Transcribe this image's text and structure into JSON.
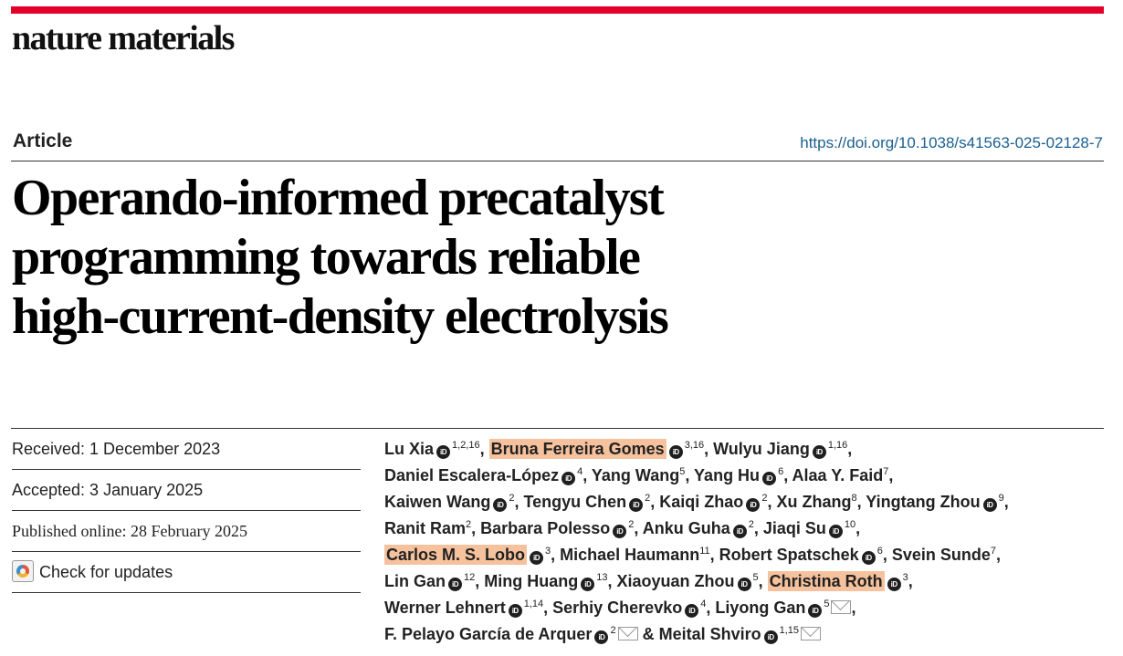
{
  "journal": "nature materials",
  "article_type": "Article",
  "doi": "https://doi.org/10.1038/s41563-025-02128-7",
  "title_lines": [
    "Operando-informed precatalyst",
    "programming towards reliable",
    "high-current-density electrolysis"
  ],
  "dates": {
    "received": "Received: 1 December 2023",
    "accepted": "Accepted: 3 January 2025",
    "published": "Published online: 28 February 2025",
    "check_updates": "Check for updates"
  },
  "orcid_label": "iD",
  "authors": [
    {
      "name": "Lu Xia",
      "orcid": true,
      "aff": "1,2,16",
      "highlight": false
    },
    {
      "name": "Bruna Ferreira Gomes",
      "orcid": true,
      "aff": "3,16",
      "highlight": true
    },
    {
      "name": "Wulyu Jiang",
      "orcid": true,
      "aff": "1,16",
      "highlight": false
    },
    {
      "name": "Daniel Escalera-López",
      "orcid": true,
      "aff": "4",
      "highlight": false
    },
    {
      "name": "Yang Wang",
      "orcid": false,
      "aff": "5",
      "highlight": false
    },
    {
      "name": "Yang Hu",
      "orcid": true,
      "aff": "6",
      "highlight": false
    },
    {
      "name": "Alaa Y. Faid",
      "orcid": false,
      "aff": "7",
      "highlight": false
    },
    {
      "name": "Kaiwen Wang",
      "orcid": true,
      "aff": "2",
      "highlight": false
    },
    {
      "name": "Tengyu Chen",
      "orcid": true,
      "aff": "2",
      "highlight": false
    },
    {
      "name": "Kaiqi Zhao",
      "orcid": true,
      "aff": "2",
      "highlight": false
    },
    {
      "name": "Xu Zhang",
      "orcid": false,
      "aff": "8",
      "highlight": false
    },
    {
      "name": "Yingtang Zhou",
      "orcid": true,
      "aff": "9",
      "highlight": false
    },
    {
      "name": "Ranit Ram",
      "orcid": false,
      "aff": "2",
      "highlight": false
    },
    {
      "name": "Barbara Polesso",
      "orcid": true,
      "aff": "2",
      "highlight": false
    },
    {
      "name": "Anku Guha",
      "orcid": true,
      "aff": "2",
      "highlight": false
    },
    {
      "name": "Jiaqi Su",
      "orcid": true,
      "aff": "10",
      "highlight": false
    },
    {
      "name": "Carlos M. S. Lobo",
      "orcid": true,
      "aff": "3",
      "highlight": true
    },
    {
      "name": "Michael Haumann",
      "orcid": false,
      "aff": "11",
      "highlight": false
    },
    {
      "name": "Robert Spatschek",
      "orcid": true,
      "aff": "6",
      "highlight": false
    },
    {
      "name": "Svein Sunde",
      "orcid": false,
      "aff": "7",
      "highlight": false
    },
    {
      "name": "Lin Gan",
      "orcid": true,
      "aff": "12",
      "highlight": false
    },
    {
      "name": "Ming Huang",
      "orcid": true,
      "aff": "13",
      "highlight": false
    },
    {
      "name": "Xiaoyuan Zhou",
      "orcid": true,
      "aff": "5",
      "highlight": false
    },
    {
      "name": "Christina Roth",
      "orcid": true,
      "aff": "3",
      "highlight": true
    },
    {
      "name": "Werner Lehnert",
      "orcid": true,
      "aff": "1,14",
      "highlight": false
    },
    {
      "name": "Serhiy Cherevko",
      "orcid": true,
      "aff": "4",
      "highlight": false
    },
    {
      "name": "Liyong Gan",
      "orcid": true,
      "aff": "5",
      "highlight": false,
      "corresponding": true
    },
    {
      "name": "F. Pelayo García de Arquer",
      "orcid": true,
      "aff": "2",
      "highlight": false,
      "corresponding": true
    },
    {
      "name": "Meital Shviro",
      "orcid": true,
      "aff": "1,15",
      "highlight": false,
      "corresponding": true
    }
  ],
  "author_lines": [
    [
      0,
      1,
      2
    ],
    [
      3,
      4,
      5,
      6
    ],
    [
      7,
      8,
      9,
      10,
      11
    ],
    [
      12,
      13,
      14,
      15
    ],
    [
      16,
      17,
      18,
      19
    ],
    [
      20,
      21,
      22,
      23
    ],
    [
      24,
      25,
      26
    ],
    [
      27,
      28
    ]
  ],
  "final_conjunction": "& "
}
